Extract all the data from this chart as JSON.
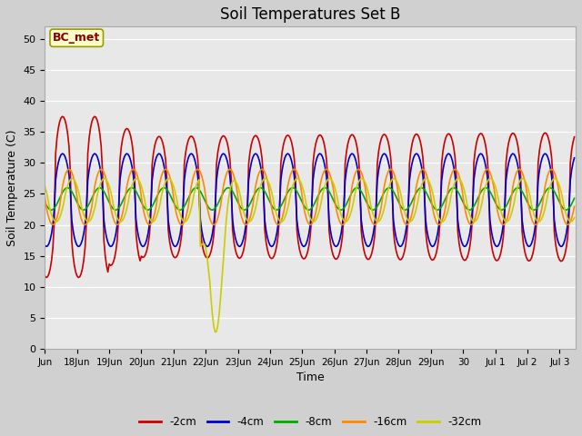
{
  "title": "Soil Temperatures Set B",
  "xlabel": "Time",
  "ylabel": "Soil Temperature (C)",
  "ylim": [
    0,
    52
  ],
  "yticks": [
    0,
    5,
    10,
    15,
    20,
    25,
    30,
    35,
    40,
    45,
    50
  ],
  "bg_color": "#e0e0e0",
  "plot_bg_color": "#e8e8e8",
  "annotation_text": "BC_met",
  "annotation_bg": "#ffffcc",
  "annotation_border": "#999900",
  "annotation_text_color": "#880000",
  "series_colors": [
    "#cc0000",
    "#0000cc",
    "#00aa00",
    "#ff8800",
    "#cccc00"
  ],
  "series_labels": [
    "-2cm",
    "-4cm",
    "-8cm",
    "-16cm",
    "-32cm"
  ],
  "legend_pos": "lower center",
  "grid_color": "#ffffff",
  "title_fontsize": 12
}
